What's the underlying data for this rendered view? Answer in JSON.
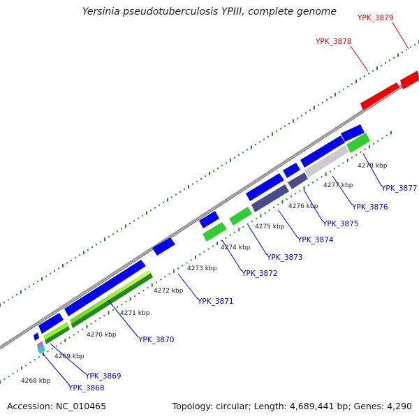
{
  "title": "Yersinia pseudotuberculosis YPIII, complete genome",
  "footer": {
    "accession": "Accession: NC_010465",
    "summary": "Topology: circular; Length: 4,689,441 bp; Genes: 4,290"
  },
  "colors": {
    "gene_blue": "#0000ee",
    "gene_red": "#ee0000",
    "gene_green": "#33cc33",
    "gene_lightgreen": "#99ee33",
    "gene_purple": "#4a4a8c",
    "gene_grey": "#cccccc",
    "gene_cyan": "#33cccc",
    "backbone": "#888888",
    "ticks": "#228822",
    "label_blue": "#0000cc",
    "label_red": "#dd0000"
  },
  "scale_labels": [
    "4268 kbp",
    "4269 kbp",
    "4270 kbp",
    "4271 kbp",
    "4272 kbp",
    "4273 kbp",
    "4274 kbp",
    "4275 kbp",
    "4276 kbp",
    "4277 kbp",
    "4278 kbp"
  ],
  "gene_labels": [
    {
      "text": "YPK_3868",
      "strand": "minus"
    },
    {
      "text": "YPK_3869",
      "strand": "minus"
    },
    {
      "text": "YPK_3870",
      "strand": "minus"
    },
    {
      "text": "YPK_3871",
      "strand": "minus"
    },
    {
      "text": "YPK_3872",
      "strand": "minus"
    },
    {
      "text": "YPK_3873",
      "strand": "minus"
    },
    {
      "text": "YPK_3874",
      "strand": "minus"
    },
    {
      "text": "YPK_3875",
      "strand": "minus"
    },
    {
      "text": "YPK_3876",
      "strand": "minus"
    },
    {
      "text": "YPK_3877",
      "strand": "minus"
    },
    {
      "text": "YPK_3878",
      "strand": "plus"
    },
    {
      "text": "YPK_3879",
      "strand": "plus"
    }
  ]
}
